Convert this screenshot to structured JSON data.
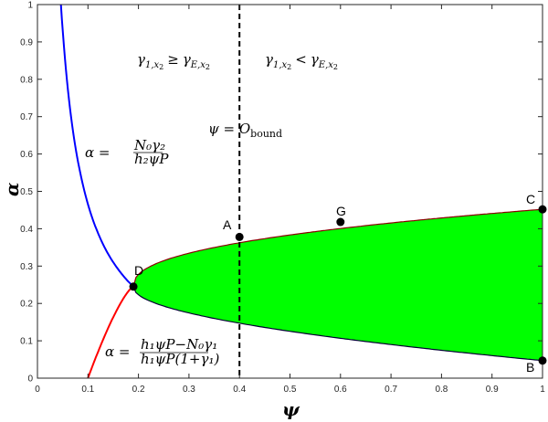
{
  "chart_data": {
    "type": "area",
    "title": "",
    "xlabel": "ψ",
    "ylabel": "α",
    "xlim": [
      0,
      1
    ],
    "ylim": [
      0,
      1
    ],
    "grid": false,
    "xticks": [
      "0",
      "0.1",
      "0.2",
      "0.3",
      "0.4",
      "0.5",
      "0.6",
      "0.7",
      "0.8",
      "0.9",
      "1"
    ],
    "yticks": [
      "0",
      "0.1",
      "0.2",
      "0.3",
      "0.4",
      "0.5",
      "0.6",
      "0.7",
      "0.8",
      "0.9",
      "1"
    ],
    "colors": {
      "blue_curve": "#0000ff",
      "red_curve": "#ff0000",
      "fill": "#00ff00",
      "boundary": "#000000"
    },
    "series": [
      {
        "name": "blue_curve",
        "formula": "α = N0γ2 / (h2ψP)",
        "x": [
          0.047,
          0.06,
          0.08,
          0.1,
          0.12,
          0.14,
          0.16,
          0.19
        ],
        "values": [
          1.0,
          0.777,
          0.583,
          0.466,
          0.388,
          0.333,
          0.291,
          0.245
        ]
      },
      {
        "name": "red_curve",
        "formula": "α = (h1ψP − N0γ1) / (h1ψP(1+γ1))",
        "x": [
          0.1,
          0.12,
          0.14,
          0.16,
          0.19
        ],
        "values": [
          0.0,
          0.06,
          0.12,
          0.18,
          0.245
        ]
      },
      {
        "name": "feasible_region_upper",
        "x": [
          0.19,
          0.3,
          0.4,
          0.5,
          0.6,
          0.7,
          0.8,
          0.9,
          1.0
        ],
        "values": [
          0.245,
          0.34,
          0.378,
          0.401,
          0.418,
          0.43,
          0.439,
          0.446,
          0.452
        ]
      },
      {
        "name": "feasible_region_lower",
        "x": [
          0.19,
          0.3,
          0.4,
          0.5,
          0.6,
          0.7,
          0.8,
          0.9,
          1.0
        ],
        "values": [
          0.245,
          0.15,
          0.117,
          0.094,
          0.077,
          0.065,
          0.056,
          0.051,
          0.047
        ]
      }
    ],
    "vertical_line": {
      "x": 0.4,
      "style": "dashed",
      "label": "ψ = O_bound"
    },
    "points": [
      {
        "label": "A",
        "x": 0.4,
        "y": 0.378
      },
      {
        "label": "G",
        "x": 0.6,
        "y": 0.418
      },
      {
        "label": "C",
        "x": 1.0,
        "y": 0.452
      },
      {
        "label": "B",
        "x": 1.0,
        "y": 0.047
      },
      {
        "label": "D",
        "x": 0.19,
        "y": 0.245
      }
    ],
    "annotations": [
      {
        "text": "γ1,x2 ≥ γE,x2",
        "x": 0.2,
        "y": 0.85
      },
      {
        "text": "γ1,x2 < γE,x2",
        "x": 0.45,
        "y": 0.85
      },
      {
        "text": "ψ = O_bound",
        "x": 0.34,
        "y": 0.66
      },
      {
        "text": "α = N0γ2 / (h2ψP)",
        "x": 0.12,
        "y": 0.6
      },
      {
        "text": "α = (h1ψP − N0γ1) / (h1ψP(1+γ1))",
        "x": 0.13,
        "y": 0.1
      }
    ]
  },
  "labels": {
    "region_left": "γ",
    "region_left_sub": "1,x",
    "region_left_sub2": "2",
    "geq": "≥",
    "lt": "<",
    "gammaE_sub": "E,x",
    "psi_eq": "ψ = O",
    "bound_sub": "bound",
    "alpha_eq": "α =",
    "blue_num": "N₀γ₂",
    "blue_den": "h₂ψP",
    "red_num": "h₁ψP−N₀γ₁",
    "red_den": "h₁ψP(1+γ₁)",
    "x_axis": "ψ",
    "y_axis": "α",
    "pt_A": "A",
    "pt_G": "G",
    "pt_C": "C",
    "pt_B": "B",
    "pt_D": "D"
  }
}
